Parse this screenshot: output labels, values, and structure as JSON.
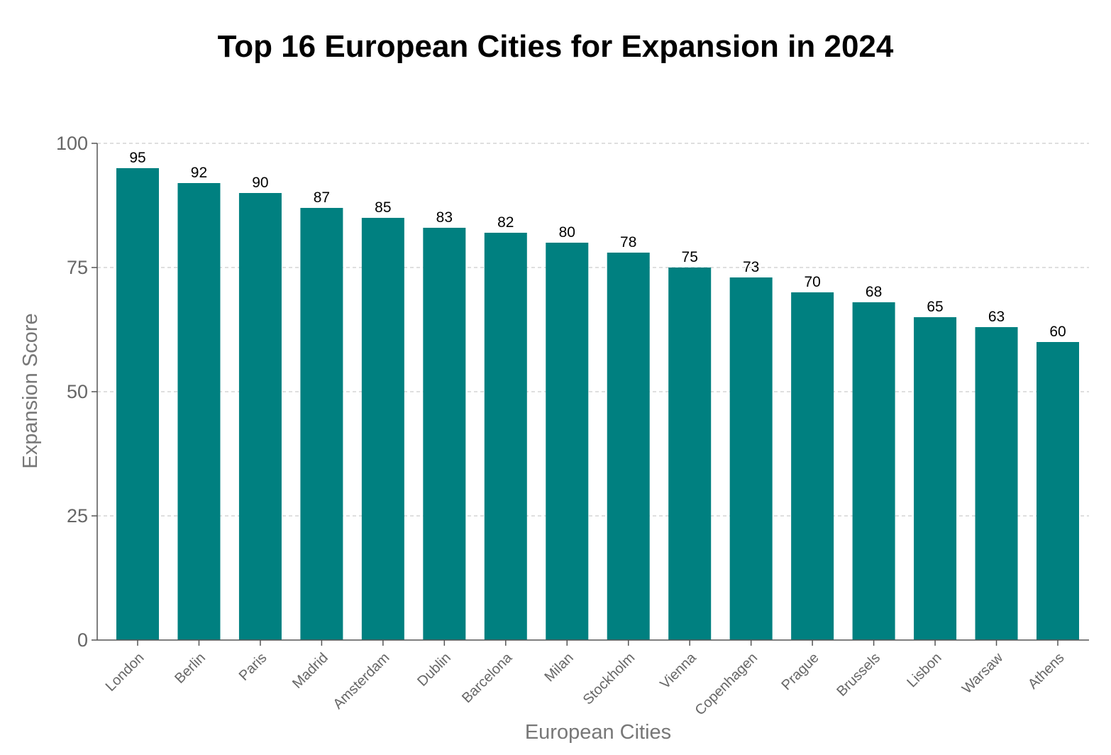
{
  "chart_data": {
    "type": "bar",
    "title": "Top 16 European Cities for Expansion in 2024",
    "xlabel": "European Cities",
    "ylabel": "Expansion Score",
    "categories": [
      "London",
      "Berlin",
      "Paris",
      "Madrid",
      "Amsterdam",
      "Dublin",
      "Barcelona",
      "Milan",
      "Stockholm",
      "Vienna",
      "Copenhagen",
      "Prague",
      "Brussels",
      "Lisbon",
      "Warsaw",
      "Athens"
    ],
    "values": [
      95,
      92,
      90,
      87,
      85,
      83,
      82,
      80,
      78,
      75,
      73,
      70,
      68,
      65,
      63,
      60
    ],
    "ylim": [
      0,
      100
    ],
    "yticks": [
      0,
      25,
      50,
      75,
      100
    ],
    "grid": true,
    "bar_color": "#008080",
    "data_labels": true
  }
}
